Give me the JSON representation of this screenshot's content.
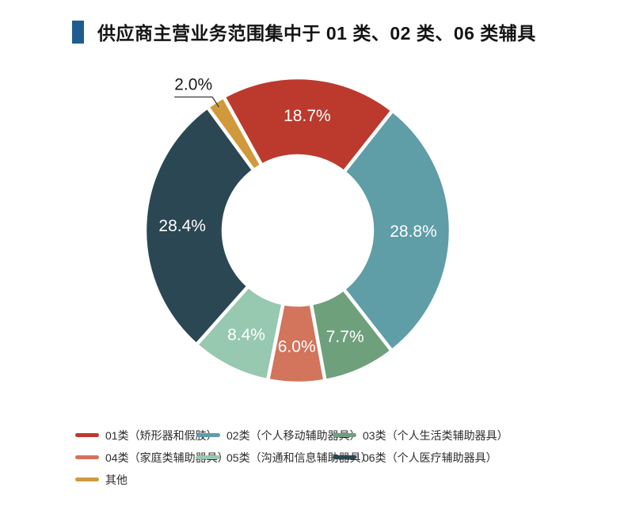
{
  "header": {
    "title": "供应商主营业务范围集中于 01 类、02 类、06 类辅具",
    "accent_color": "#1f5c8f"
  },
  "chart_data": {
    "type": "pie",
    "subtype": "donut",
    "title": "供应商主营业务范围集中于 01 类、02 类、06 类辅具",
    "total": 100.0,
    "start_angle_clockwise_from_north": -29,
    "legend_position": "bottom-left",
    "inside_label_color": "#ffffff",
    "outside_label_color": "#1a1a1a",
    "label_line_color": "#3a3a3a",
    "slices": [
      {
        "name": "01类（矫形器和假肢）",
        "value": 18.7,
        "label": "18.7%",
        "color": "#bc3a2d",
        "label_placement": "inside"
      },
      {
        "name": "02类（个人移动辅助器具）",
        "value": 28.8,
        "label": "28.8%",
        "color": "#5f9da7",
        "label_placement": "inside"
      },
      {
        "name": "03类（个人生活类辅助器具）",
        "value": 7.7,
        "label": "7.7%",
        "color": "#6fa07c",
        "label_placement": "inside"
      },
      {
        "name": "04类（家庭类辅助器具）",
        "value": 6.0,
        "label": "6.0%",
        "color": "#d3745c",
        "label_placement": "inside"
      },
      {
        "name": "05类（沟通和信息辅助器具）",
        "value": 8.4,
        "label": "8.4%",
        "color": "#97c8b0",
        "label_placement": "inside"
      },
      {
        "name": "06类（个人医疗辅助器具）",
        "value": 28.4,
        "label": "28.4%",
        "color": "#2b4754",
        "label_placement": "inside"
      },
      {
        "name": "其他",
        "value": 2.0,
        "label": "2.0%",
        "color": "#d09a3c",
        "label_placement": "outside"
      }
    ]
  }
}
